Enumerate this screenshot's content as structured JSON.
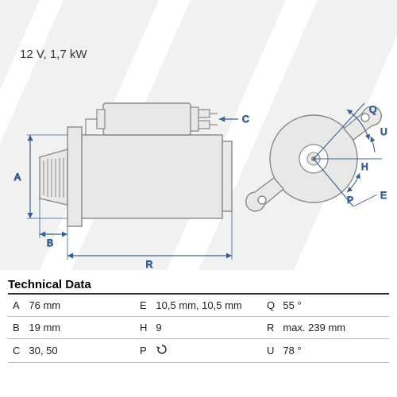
{
  "header": {
    "spec": "12 V, 1,7 kW"
  },
  "diagram": {
    "line_color": "#3a5f8f",
    "body_fill": "#e8e8e8",
    "body_stroke": "#888888",
    "bg_stripe_color": "#d8d8d8",
    "labels": {
      "A": "A",
      "B": "B",
      "C": "C",
      "R": "R",
      "H": "H",
      "P": "P",
      "E": "E",
      "Q": "Q",
      "U": "U",
      "empty": ""
    }
  },
  "tech": {
    "title": "Technical Data",
    "rows": [
      {
        "k1": "A",
        "v1": "76 mm",
        "k2": "E",
        "v2": "10,5 mm, 10,5 mm",
        "k3": "Q",
        "v3": "55 °"
      },
      {
        "k1": "B",
        "v1": "19 mm",
        "k2": "H",
        "v2": "9",
        "k3": "R",
        "v3": "max. 239 mm"
      },
      {
        "k1": "C",
        "v1": "30, 50",
        "k2": "P",
        "v2": "__ROT__",
        "k3": "U",
        "v3": "78 °"
      }
    ]
  }
}
